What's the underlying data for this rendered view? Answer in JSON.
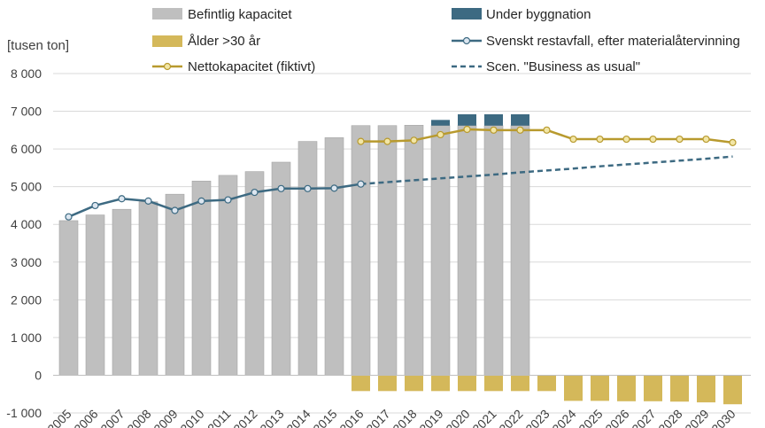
{
  "chart_data": {
    "type": "bar",
    "y_unit": "[tusen ton]",
    "ylim": [
      -1000,
      8000
    ],
    "y_ticks": [
      "8 000",
      "7 000",
      "6 000",
      "5 000",
      "4 000",
      "3 000",
      "2 000",
      "1 000",
      "0",
      "-1 000"
    ],
    "categories": [
      "2005",
      "2006",
      "2007",
      "2008",
      "2009",
      "2010",
      "2011",
      "2012",
      "2013",
      "2014",
      "2015",
      "2016",
      "2017",
      "2018",
      "2019",
      "2020",
      "2021",
      "2022",
      "2023",
      "2024",
      "2025",
      "2026",
      "2027",
      "2028",
      "2029",
      "2030"
    ],
    "legend": {
      "befintlig": "Befintlig kapacitet",
      "under": "Under byggnation",
      "alder": "Ålder >30 år",
      "svenskt": "Svenskt restavfall, efter materialåtervinning",
      "netto": "Nettokapacitet (fiktivt)",
      "bau": "Scen. \"Business as usual\""
    },
    "colors": {
      "befintlig": "#bfbfbf",
      "under": "#3d6a82",
      "alder": "#d4b85a",
      "svenskt": "#3d6a82",
      "netto": "#b89a2e",
      "grid": "#d9d9d9"
    },
    "series": {
      "befintlig": [
        4100,
        4250,
        4400,
        4600,
        4800,
        5150,
        5300,
        5400,
        5650,
        6200,
        6300,
        6620,
        6620,
        6630,
        6620,
        6620,
        6620,
        6620,
        null,
        null,
        null,
        null,
        null,
        null,
        null,
        null
      ],
      "under": [
        0,
        0,
        0,
        0,
        0,
        0,
        0,
        0,
        0,
        0,
        0,
        0,
        0,
        0,
        150,
        300,
        300,
        300,
        0,
        0,
        0,
        0,
        0,
        0,
        0,
        0
      ],
      "alder": [
        0,
        0,
        0,
        0,
        0,
        0,
        0,
        0,
        0,
        0,
        0,
        -420,
        -420,
        -420,
        -420,
        -420,
        -420,
        -420,
        -420,
        -680,
        -680,
        -690,
        -690,
        -700,
        -720,
        -770
      ],
      "svenskt": [
        4200,
        4500,
        4680,
        4620,
        4370,
        4620,
        4650,
        4850,
        4950,
        4950,
        4960,
        5070,
        null,
        null,
        null,
        null,
        null,
        null,
        null,
        null,
        null,
        null,
        null,
        null,
        null,
        null
      ],
      "netto": [
        null,
        null,
        null,
        null,
        null,
        null,
        null,
        null,
        null,
        null,
        null,
        6200,
        6200,
        6230,
        6380,
        6520,
        6500,
        6500,
        6500,
        6260,
        6260,
        6260,
        6260,
        6260,
        6260,
        6170
      ],
      "bau": [
        null,
        null,
        null,
        null,
        null,
        null,
        null,
        null,
        null,
        null,
        null,
        5070,
        5120,
        5170,
        5220,
        5270,
        5320,
        5380,
        5430,
        5480,
        5540,
        5590,
        5640,
        5690,
        5740,
        5800
      ]
    }
  }
}
